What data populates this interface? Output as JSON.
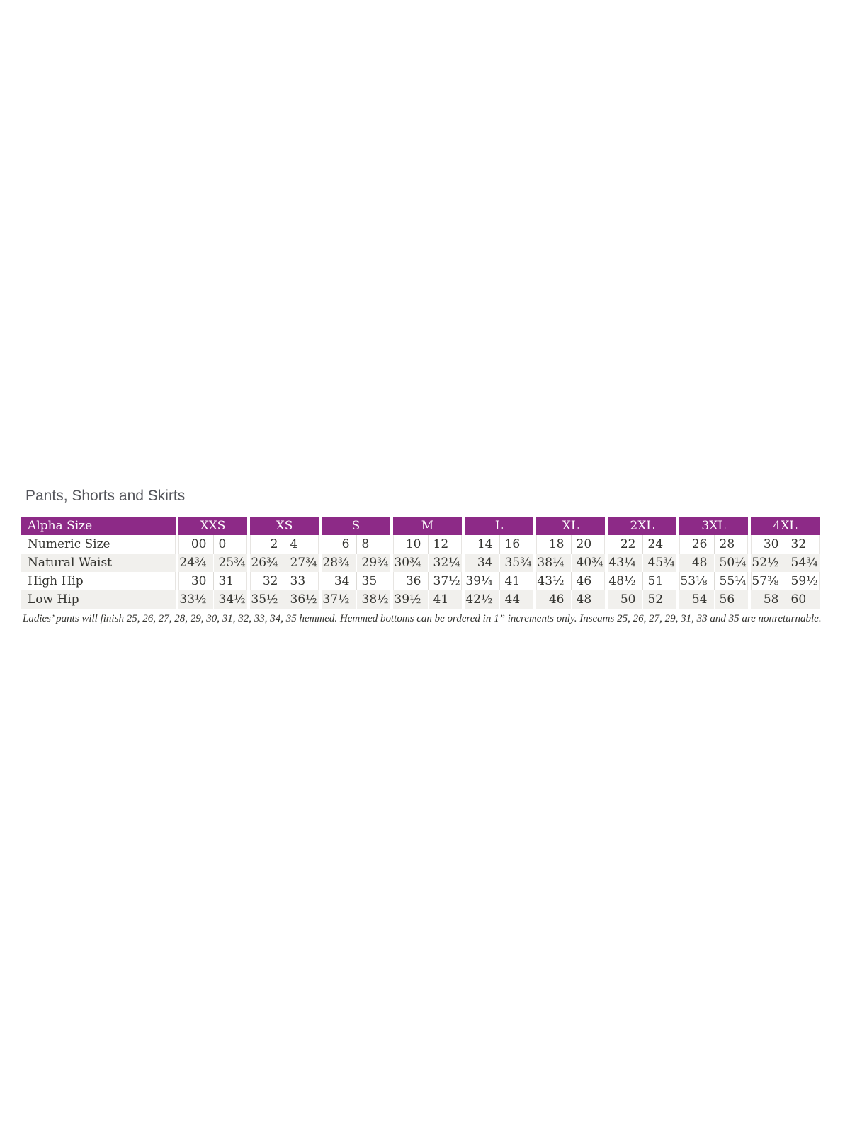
{
  "page": {
    "title": "Pants, Shorts and Skirts"
  },
  "colors": {
    "header_bg": "#8D2A87",
    "alt_row_bg": "#F1F0ED",
    "text": "#33332F",
    "title": "#54555B"
  },
  "table": {
    "header": {
      "label": "Alpha Size",
      "groups": [
        "XXS",
        "XS",
        "S",
        "M",
        "L",
        "XL",
        "2XL",
        "3XL",
        "4XL"
      ]
    },
    "rows": [
      {
        "label": "Numeric Size",
        "cells": [
          "00",
          "0",
          "2",
          "4",
          "6",
          "8",
          "10",
          "12",
          "14",
          "16",
          "18",
          "20",
          "22",
          "24",
          "26",
          "28",
          "30",
          "32"
        ]
      },
      {
        "label": "Natural Waist",
        "cells": [
          "24¾",
          "25¾",
          "26¾",
          "27¾",
          "28¾",
          "29¾",
          "30¾",
          "32¼",
          "34",
          "35¾",
          "38¼",
          "40¾",
          "43¼",
          "45¾",
          "48",
          "50¼",
          "52½",
          "54¾"
        ]
      },
      {
        "label": "High Hip",
        "cells": [
          "30",
          "31",
          "32",
          "33",
          "34",
          "35",
          "36",
          "37½",
          "39¼",
          "41",
          "43½",
          "46",
          "48½",
          "51",
          "53⅛",
          "55¼",
          "57⅜",
          "59½"
        ]
      },
      {
        "label": "Low Hip",
        "cells": [
          "33½",
          "34½",
          "35½",
          "36½",
          "37½",
          "38½",
          "39½",
          "41",
          "42½",
          "44",
          "46",
          "48",
          "50",
          "52",
          "54",
          "56",
          "58",
          "60"
        ]
      }
    ],
    "footnote": "Ladies’ pants will finish 25, 26, 27, 28, 29, 30, 31, 32, 33, 34, 35 hemmed. Hemmed bottoms can be ordered in 1” increments only. Inseams 25, 26, 27, 29, 31, 33 and 35 are nonreturnable."
  }
}
